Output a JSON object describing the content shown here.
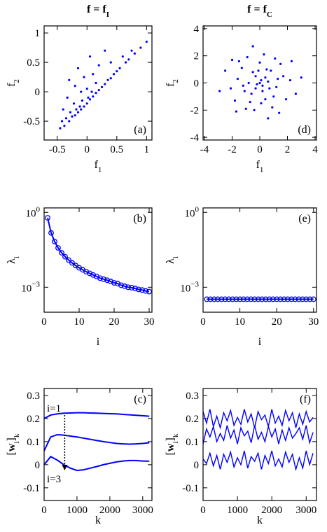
{
  "chart_data": [
    {
      "type": "scatter",
      "title": [
        {
          "text": "f = f",
          "bold": true
        },
        {
          "text": "I",
          "sub": true,
          "bold": true
        }
      ],
      "xlabel": [
        {
          "text": "f"
        },
        {
          "text": "1",
          "sub": true
        }
      ],
      "ylabel": [
        {
          "text": "f"
        },
        {
          "text": "2",
          "sub": true
        }
      ],
      "xlim": [
        -0.72,
        1.09
      ],
      "ylim": [
        -0.82,
        1.12
      ],
      "xticks": [
        -0.5,
        0,
        0.5,
        1
      ],
      "yticks": [
        -0.5,
        0,
        0.5,
        1
      ],
      "panel_label": "(a)",
      "label_corner": "lower right",
      "color": "#0000ff",
      "x": [
        -0.45,
        -0.42,
        -0.4,
        -0.38,
        -0.35,
        -0.33,
        -0.3,
        -0.3,
        -0.28,
        -0.25,
        -0.22,
        -0.2,
        -0.2,
        -0.18,
        -0.15,
        -0.15,
        -0.12,
        -0.1,
        -0.1,
        -0.08,
        -0.05,
        -0.05,
        0,
        0,
        0.02,
        0.05,
        0.05,
        0.08,
        0.1,
        0.1,
        0.15,
        0.15,
        0.2,
        0.2,
        0.25,
        0.3,
        0.3,
        0.35,
        0.4,
        0.4,
        0.45,
        0.5,
        0.55,
        0.6,
        0.65,
        0.7,
        0.75,
        0.8,
        0.9,
        1.0
      ],
      "y": [
        -0.62,
        -0.5,
        -0.3,
        -0.58,
        -0.45,
        -0.1,
        -0.5,
        0.2,
        -0.35,
        -0.42,
        -0.2,
        -0.4,
        0.1,
        -0.3,
        -0.35,
        0.4,
        -0.25,
        -0.3,
        0.0,
        -0.15,
        -0.25,
        0.25,
        -0.2,
        0.05,
        -0.1,
        -0.13,
        0.6,
        0.0,
        -0.08,
        0.3,
        -0.02,
        0.15,
        0.03,
        0.45,
        0.08,
        0.13,
        0.7,
        0.2,
        0.23,
        0.5,
        0.3,
        0.35,
        0.4,
        0.6,
        0.5,
        0.55,
        0.7,
        0.65,
        0.75,
        0.85
      ]
    },
    {
      "type": "line",
      "ylog": true,
      "markers": true,
      "xlabel": [
        {
          "text": "i"
        }
      ],
      "ylabel": [
        {
          "text": "λ"
        },
        {
          "text": "i",
          "sub": true
        }
      ],
      "xlim": [
        0,
        30.8
      ],
      "ylim": [
        0.0001,
        1.5
      ],
      "xticks": [
        0,
        10,
        20,
        30
      ],
      "yticks": [
        {
          "value": 1,
          "label": "10",
          "exponent": "0"
        },
        {
          "value": 0.001,
          "label": "10",
          "exponent": "−3"
        }
      ],
      "panel_label": "(b)",
      "label_corner": "upper right",
      "x": [
        1,
        2,
        3,
        4,
        5,
        6,
        7,
        8,
        9,
        10,
        11,
        12,
        13,
        14,
        15,
        16,
        17,
        18,
        19,
        20,
        21,
        22,
        23,
        24,
        25,
        26,
        27,
        28,
        29,
        30
      ],
      "series": [
        {
          "color": "#0000ff",
          "values": [
            0.6,
            0.15,
            0.067,
            0.0375,
            0.024,
            0.0167,
            0.0122,
            0.0094,
            0.0074,
            0.006,
            0.005,
            0.0042,
            0.0036,
            0.0031,
            0.0027,
            0.0023,
            0.0021,
            0.0019,
            0.0017,
            0.0015,
            0.0014,
            0.0012,
            0.0011,
            0.001,
            0.00096,
            0.00089,
            0.00082,
            0.00077,
            0.00071,
            0.00067
          ]
        }
      ]
    },
    {
      "type": "line",
      "xlabel": [
        {
          "text": "k"
        }
      ],
      "ylabel": [
        {
          "text": "["
        },
        {
          "text": "w",
          "bold": true
        },
        {
          "text": "i",
          "sub": true
        },
        {
          "text": "]"
        },
        {
          "text": "k",
          "sub": true
        }
      ],
      "xlim": [
        0,
        3280
      ],
      "ylim": [
        -0.155,
        0.33
      ],
      "xticks": [
        0,
        1000,
        2000,
        3000
      ],
      "yticks": [
        -0.1,
        0,
        0.1,
        0.2,
        0.3
      ],
      "panel_label": "(c)",
      "label_corner": "upper right",
      "annotations": [
        "i=1",
        "i=3"
      ],
      "x": [
        0,
        200,
        400,
        600,
        800,
        1000,
        1200,
        1400,
        1600,
        1800,
        2000,
        2200,
        2400,
        2600,
        2800,
        3000,
        3200
      ],
      "series": [
        {
          "color": "#0000ff",
          "values": [
            0.2,
            0.215,
            0.22,
            0.223,
            0.224,
            0.225,
            0.225,
            0.224,
            0.223,
            0.222,
            0.221,
            0.22,
            0.218,
            0.216,
            0.214,
            0.212,
            0.21
          ]
        },
        {
          "color": "#0000ff",
          "values": [
            0.06,
            0.12,
            0.13,
            0.128,
            0.124,
            0.12,
            0.115,
            0.11,
            0.105,
            0.1,
            0.096,
            0.092,
            0.09,
            0.089,
            0.09,
            0.092,
            0.095
          ]
        },
        {
          "color": "#0000ff",
          "values": [
            0,
            0.035,
            0.02,
            0.0,
            -0.015,
            -0.025,
            -0.022,
            -0.015,
            -0.008,
            0.0,
            0.006,
            0.012,
            0.016,
            0.018,
            0.018,
            0.016,
            0.015
          ]
        }
      ]
    },
    {
      "type": "scatter",
      "title": [
        {
          "text": "f = f",
          "bold": true
        },
        {
          "text": "C",
          "sub": true,
          "bold": true
        }
      ],
      "xlabel": [
        {
          "text": "f"
        },
        {
          "text": "1",
          "sub": true
        }
      ],
      "ylabel": [
        {
          "text": "f"
        },
        {
          "text": "2",
          "sub": true
        }
      ],
      "xlim": [
        -4.1,
        4.1
      ],
      "ylim": [
        -4.2,
        4.2
      ],
      "xticks": [
        -4,
        -2,
        0,
        2,
        4
      ],
      "yticks": [
        -4,
        -2,
        0,
        2,
        4
      ],
      "panel_label": "(d)",
      "label_corner": "lower right",
      "color": "#0000ff",
      "x": [
        0.1,
        -0.5,
        1.2,
        -1.1,
        0.4,
        -0.2,
        0.8,
        -1.6,
        1.7,
        0.0,
        -0.7,
        0.6,
        -0.3,
        1.0,
        -1.3,
        2.2,
        -2.1,
        0.3,
        -0.4,
        1.5,
        -1.8,
        0.9,
        -0.9,
        2.6,
        -2.5,
        0.2,
        -0.1,
        0.7,
        -0.8,
        1.3,
        -1.2,
        0.5,
        -0.6,
        0.1,
        1.9,
        -1.5,
        0.0,
        0.4,
        -0.3,
        1.1,
        -1.0,
        3.0,
        -2.9,
        0.6,
        -0.5,
        2.3,
        -2.0,
        1.4,
        -1.7,
        0.2
      ],
      "y": [
        0.2,
        0.8,
        -0.3,
        -0.6,
        -1.2,
        -0.1,
        0.9,
        0.3,
        0.5,
        1.5,
        -1.4,
        0.1,
        0.5,
        -1.0,
        1.1,
        0.2,
        -0.4,
        2.1,
        -2.0,
        1.4,
        -1.3,
        -1.8,
        1.9,
        -0.8,
        0.9,
        -0.6,
        0.9,
        -0.4,
        0.0,
        0.3,
        -0.2,
        1.0,
        -0.8,
        -1.5,
        -1.2,
        1.6,
        0.0,
        0.4,
        -0.4,
        1.8,
        -1.9,
        0.4,
        -0.6,
        -2.6,
        2.7,
        1.6,
        1.7,
        -2.2,
        -2.1,
        -0.2
      ]
    },
    {
      "type": "line",
      "ylog": true,
      "markers": true,
      "xlabel": [
        {
          "text": "i"
        }
      ],
      "ylabel": [
        {
          "text": "λ"
        },
        {
          "text": "i",
          "sub": true
        }
      ],
      "xlim": [
        0,
        30.8
      ],
      "ylim": [
        0.0001,
        1.5
      ],
      "xticks": [
        0,
        10,
        20,
        30
      ],
      "yticks": [
        {
          "value": 1,
          "label": "10",
          "exponent": "0"
        },
        {
          "value": 0.001,
          "label": "10",
          "exponent": "−3"
        }
      ],
      "panel_label": "(e)",
      "label_corner": "upper right",
      "x": [
        1,
        2,
        3,
        4,
        5,
        6,
        7,
        8,
        9,
        10,
        11,
        12,
        13,
        14,
        15,
        16,
        17,
        18,
        19,
        20,
        21,
        22,
        23,
        24,
        25,
        26,
        27,
        28,
        29,
        30
      ],
      "series": [
        {
          "color": "#0000ff",
          "values": [
            0.00033,
            0.00033,
            0.00033,
            0.00033,
            0.00033,
            0.00033,
            0.00033,
            0.00033,
            0.00033,
            0.00033,
            0.00033,
            0.00033,
            0.00033,
            0.00033,
            0.00033,
            0.00033,
            0.00033,
            0.00033,
            0.00033,
            0.00033,
            0.00033,
            0.00033,
            0.00033,
            0.00033,
            0.00033,
            0.00033,
            0.00033,
            0.00033,
            0.00033,
            0.00033
          ]
        }
      ]
    },
    {
      "type": "line",
      "xlabel": [
        {
          "text": "k"
        }
      ],
      "ylabel": [
        {
          "text": "["
        },
        {
          "text": "w",
          "bold": true
        },
        {
          "text": "i",
          "sub": true
        },
        {
          "text": "]"
        },
        {
          "text": "k",
          "sub": true
        }
      ],
      "xlim": [
        0,
        3300
      ],
      "ylim": [
        -0.155,
        0.33
      ],
      "xticks": [
        0,
        1000,
        2000,
        3000
      ],
      "yticks": [
        -0.1,
        0,
        0.1,
        0.2,
        0.3
      ],
      "panel_label": "(f)",
      "label_corner": "upper right",
      "x": [
        0,
        100,
        200,
        300,
        400,
        500,
        600,
        700,
        800,
        900,
        1000,
        1100,
        1200,
        1300,
        1400,
        1500,
        1600,
        1700,
        1800,
        1900,
        2000,
        2100,
        2200,
        2300,
        2400,
        2500,
        2600,
        2700,
        2800,
        2900,
        3000,
        3100,
        3200
      ],
      "series": [
        {
          "color": "#0000ff",
          "values": [
            0.23,
            0.18,
            0.24,
            0.165,
            0.21,
            0.16,
            0.225,
            0.19,
            0.235,
            0.17,
            0.205,
            0.175,
            0.24,
            0.185,
            0.22,
            0.16,
            0.23,
            0.195,
            0.215,
            0.165,
            0.24,
            0.18,
            0.21,
            0.17,
            0.235,
            0.19,
            0.225,
            0.16,
            0.22,
            0.175,
            0.23,
            0.185,
            0.205
          ]
        },
        {
          "color": "#0000ff",
          "values": [
            0.09,
            0.155,
            0.12,
            0.165,
            0.1,
            0.135,
            0.105,
            0.17,
            0.115,
            0.15,
            0.09,
            0.16,
            0.125,
            0.145,
            0.095,
            0.17,
            0.11,
            0.14,
            0.1,
            0.165,
            0.12,
            0.155,
            0.09,
            0.15,
            0.105,
            0.16,
            0.115,
            0.135,
            0.16,
            0.11,
            0.17,
            0.095,
            0.14
          ]
        },
        {
          "color": "#0000ff",
          "values": [
            0.025,
            0.005,
            0.05,
            -0.005,
            0.04,
            -0.02,
            0.045,
            0.01,
            0.055,
            -0.01,
            0.03,
            0,
            0.06,
            -0.015,
            0.035,
            0.015,
            0.05,
            -0.02,
            0.04,
            0.005,
            0.06,
            -0.005,
            0.025,
            -0.01,
            0.055,
            0.01,
            0.045,
            -0.02,
            0.03,
            -0.015,
            0.06,
            0,
            0.05
          ]
        }
      ]
    }
  ]
}
